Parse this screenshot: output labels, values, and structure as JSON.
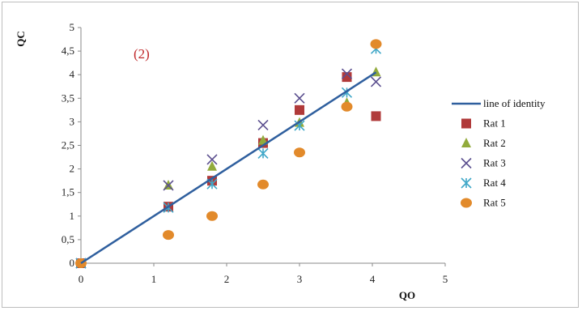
{
  "chart_data": {
    "type": "scatter",
    "annotation": "(2)",
    "xlabel": "QO",
    "ylabel": "QC",
    "xlim": [
      0,
      5
    ],
    "ylim": [
      0,
      5
    ],
    "x_ticks": [
      "0",
      "1",
      "2",
      "3",
      "4",
      "5"
    ],
    "y_ticks": [
      "0",
      "0,5",
      "1",
      "1,5",
      "2",
      "2,5",
      "3",
      "3,5",
      "4",
      "4,5",
      "5"
    ],
    "grid": false,
    "legend_position": "right",
    "series": [
      {
        "name": "line of identity",
        "kind": "line",
        "color": "#2f5f9e",
        "points": [
          [
            0,
            0
          ],
          [
            4.05,
            4.05
          ]
        ]
      },
      {
        "name": "Rat 1",
        "kind": "square",
        "color": "#b03a3a",
        "points": [
          [
            0,
            0
          ],
          [
            1.2,
            1.2
          ],
          [
            1.8,
            1.75
          ],
          [
            2.5,
            2.55
          ],
          [
            3.0,
            3.25
          ],
          [
            3.65,
            3.95
          ],
          [
            4.05,
            3.12
          ]
        ]
      },
      {
        "name": "Rat 2",
        "kind": "triangle",
        "color": "#92ab3c",
        "points": [
          [
            0,
            0
          ],
          [
            1.2,
            1.65
          ],
          [
            1.8,
            2.05
          ],
          [
            2.5,
            2.6
          ],
          [
            3.0,
            2.98
          ],
          [
            3.65,
            3.4
          ],
          [
            4.05,
            4.05
          ]
        ]
      },
      {
        "name": "Rat 3",
        "kind": "x",
        "color": "#5b4f8f",
        "points": [
          [
            0,
            0
          ],
          [
            1.2,
            1.65
          ],
          [
            1.8,
            2.2
          ],
          [
            2.5,
            2.93
          ],
          [
            3.0,
            3.5
          ],
          [
            3.65,
            4.02
          ],
          [
            4.05,
            3.85
          ]
        ]
      },
      {
        "name": "Rat 4",
        "kind": "asterisk",
        "color": "#3fa7c8",
        "points": [
          [
            0,
            0
          ],
          [
            1.2,
            1.18
          ],
          [
            1.8,
            1.68
          ],
          [
            2.5,
            2.33
          ],
          [
            3.0,
            2.92
          ],
          [
            3.65,
            3.62
          ],
          [
            4.05,
            4.55
          ]
        ]
      },
      {
        "name": "Rat 5",
        "kind": "circle",
        "color": "#e28a2b",
        "points": [
          [
            0,
            0
          ],
          [
            1.2,
            0.6
          ],
          [
            1.8,
            1.0
          ],
          [
            2.5,
            1.67
          ],
          [
            3.0,
            2.35
          ],
          [
            3.65,
            3.32
          ],
          [
            4.05,
            4.65
          ]
        ]
      }
    ]
  }
}
